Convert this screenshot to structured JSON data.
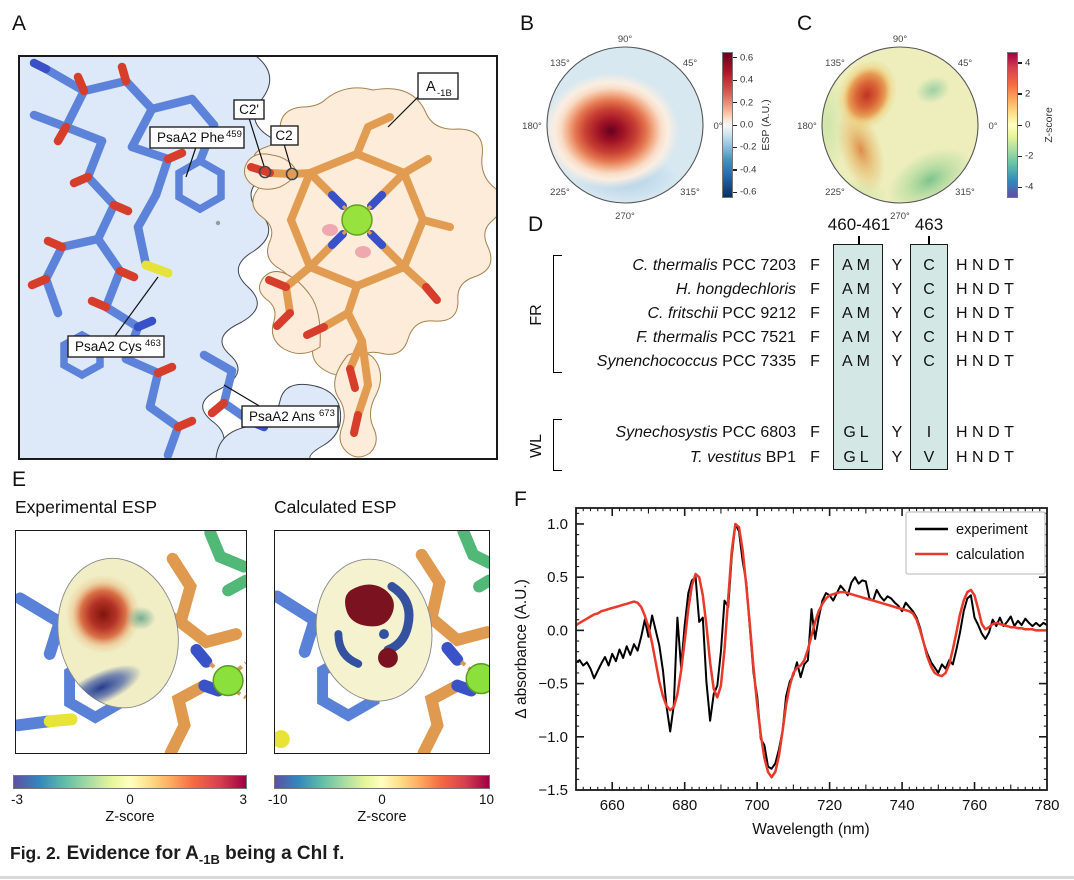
{
  "panelA": {
    "label": "A",
    "labels": {
      "phe_main": "PsaA2 Phe",
      "phe_sup": "459",
      "cys_main": "PsaA2 Cys",
      "cys_sup": "463",
      "ans_main": "PsaA2 Ans",
      "ans_sup": "673",
      "c2prime": "C2'",
      "c2": "C2",
      "a_main": "A",
      "a_sub": "-1B"
    }
  },
  "panelB": {
    "label": "B",
    "angles": [
      "90°",
      "45°",
      "0°",
      "315°",
      "270°",
      "225°",
      "180°",
      "135°"
    ],
    "colorbar_label": "ESP (A.U.)",
    "colorbar_ticks": [
      "0.6",
      "0.4",
      "0.2",
      "0.0",
      "-0.2",
      "-0.4",
      "-0.6"
    ],
    "colorbar_range": 0.65
  },
  "panelC": {
    "label": "C",
    "angles": [
      "90°",
      "45°",
      "0°",
      "315°",
      "270°",
      "225°",
      "180°",
      "135°"
    ],
    "colorbar_label": "Z-score",
    "colorbar_ticks": [
      "4",
      "2",
      "0",
      "-2",
      "-4"
    ],
    "colorbar_range": 4.7
  },
  "panelD": {
    "label": "D",
    "headers": [
      "460-461",
      "463"
    ],
    "groups": [
      {
        "name": "FR",
        "rows": [
          {
            "species": "C. thermalis",
            "strain": " PCC 7203",
            "c0": "F",
            "c1": "AM",
            "c2": "Y",
            "c3": "C",
            "c4": "HNDT"
          },
          {
            "species": "H. hongdechloris",
            "strain": "",
            "c0": "F",
            "c1": "AM",
            "c2": "Y",
            "c3": "C",
            "c4": "HNDT"
          },
          {
            "species": "C. fritschii",
            "strain": " PCC 9212",
            "c0": "F",
            "c1": "AM",
            "c2": "Y",
            "c3": "C",
            "c4": "HNDT"
          },
          {
            "species": "F. thermalis",
            "strain": " PCC 7521",
            "c0": "F",
            "c1": "AM",
            "c2": "Y",
            "c3": "C",
            "c4": "HNDT"
          },
          {
            "species": "Synenchococcus",
            "strain": " PCC 7335",
            "c0": "F",
            "c1": "AM",
            "c2": "Y",
            "c3": "C",
            "c4": "HNDT"
          }
        ]
      },
      {
        "name": "WL",
        "rows": [
          {
            "species": "Synechosystis",
            "strain": " PCC 6803",
            "c0": "F",
            "c1": "GL",
            "c2": "Y",
            "c3": "I",
            "c4": "HNDT"
          },
          {
            "species": "T. vestitus",
            "strain": " BP1",
            "c0": "F",
            "c1": "GL",
            "c2": "Y",
            "c3": "V",
            "c4": "HNDT"
          }
        ]
      }
    ]
  },
  "panelE": {
    "label": "E",
    "titles": [
      "Experimental ESP",
      "Calculated ESP"
    ],
    "colorbars": [
      {
        "min": "-3",
        "mid": "0",
        "max": "3",
        "label": "Z-score"
      },
      {
        "min": "-10",
        "mid": "0",
        "max": "10",
        "label": "Z-score"
      }
    ]
  },
  "panelF": {
    "label": "F",
    "xlabel": "Wavelength (nm)",
    "ylabel": "Δ absorbance (A.U.)",
    "legend": [
      "experiment",
      "calculation"
    ]
  },
  "caption": {
    "prefix": "Fig. 2.",
    "main": "Evidence for A",
    "sub": "-1B",
    "tail": " being a Chl f."
  },
  "chart_data": {
    "type": "line",
    "title": "",
    "xlabel": "Wavelength (nm)",
    "ylabel": "Δ absorbance (A.U.)",
    "xlim": [
      650,
      780
    ],
    "ylim": [
      -1.5,
      1.15
    ],
    "xticks": [
      660,
      680,
      700,
      720,
      740,
      760,
      780
    ],
    "yticks": [
      1.0,
      0.5,
      0.0,
      -0.5,
      -1.0,
      -1.5
    ],
    "grid": false,
    "legend_position": "upper right",
    "x_start": 650,
    "x_step": 1,
    "series": [
      {
        "name": "experiment",
        "color": "#000000",
        "values": [
          -0.3,
          -0.28,
          -0.33,
          -0.3,
          -0.36,
          -0.45,
          -0.38,
          -0.31,
          -0.25,
          -0.33,
          -0.22,
          -0.29,
          -0.18,
          -0.26,
          -0.15,
          -0.23,
          -0.13,
          -0.19,
          -0.06,
          0.1,
          -0.06,
          0.14,
          0.0,
          -0.14,
          -0.38,
          -0.72,
          -0.95,
          -0.7,
          0.12,
          -0.35,
          0.05,
          0.35,
          0.47,
          0.5,
          0.08,
          0.12,
          -0.48,
          -0.85,
          -0.6,
          -0.52,
          -0.2,
          0.28,
          0.22,
          0.7,
          1.0,
          0.93,
          0.65,
          0.45,
          0.02,
          -0.4,
          -0.62,
          -1.02,
          -1.08,
          -1.28,
          -1.3,
          -1.25,
          -1.12,
          -0.95,
          -0.62,
          -0.48,
          -0.42,
          -0.3,
          -0.44,
          -0.32,
          -0.28,
          0.2,
          -0.08,
          0.12,
          0.28,
          0.35,
          0.33,
          0.28,
          0.35,
          0.42,
          0.38,
          0.33,
          0.45,
          0.5,
          0.44,
          0.47,
          0.46,
          0.3,
          0.28,
          0.38,
          0.32,
          0.28,
          0.32,
          0.3,
          0.26,
          0.23,
          0.18,
          0.26,
          0.22,
          0.18,
          0.12,
          0.02,
          -0.12,
          -0.22,
          -0.3,
          -0.35,
          -0.4,
          -0.32,
          -0.36,
          -0.28,
          -0.32,
          -0.18,
          -0.02,
          0.18,
          0.3,
          0.33,
          0.12,
          0.05,
          -0.03,
          -0.08,
          -0.02,
          0.1,
          0.04,
          0.12,
          0.04,
          0.08,
          0.13,
          0.04,
          0.09,
          0.05,
          0.11,
          0.07,
          0.04,
          0.07,
          0.04,
          0.07,
          0.05
        ]
      },
      {
        "name": "calculation",
        "color": "#e8392a",
        "values": [
          0.05,
          0.07,
          0.09,
          0.11,
          0.13,
          0.15,
          0.16,
          0.18,
          0.19,
          0.2,
          0.21,
          0.22,
          0.23,
          0.24,
          0.25,
          0.26,
          0.27,
          0.26,
          0.22,
          0.14,
          0.03,
          -0.12,
          -0.3,
          -0.48,
          -0.62,
          -0.71,
          -0.75,
          -0.72,
          -0.6,
          -0.38,
          -0.1,
          0.2,
          0.42,
          0.53,
          0.5,
          0.33,
          0.05,
          -0.3,
          -0.55,
          -0.63,
          -0.52,
          -0.18,
          0.3,
          0.75,
          1.0,
          0.97,
          0.75,
          0.42,
          0.05,
          -0.35,
          -0.7,
          -0.98,
          -1.2,
          -1.33,
          -1.38,
          -1.33,
          -1.18,
          -0.95,
          -0.7,
          -0.52,
          -0.4,
          -0.35,
          -0.33,
          -0.28,
          -0.18,
          -0.05,
          0.08,
          0.18,
          0.25,
          0.3,
          0.33,
          0.34,
          0.35,
          0.36,
          0.36,
          0.35,
          0.34,
          0.33,
          0.32,
          0.31,
          0.3,
          0.29,
          0.28,
          0.27,
          0.26,
          0.25,
          0.24,
          0.23,
          0.22,
          0.21,
          0.2,
          0.19,
          0.18,
          0.16,
          0.1,
          0.0,
          -0.12,
          -0.25,
          -0.34,
          -0.4,
          -0.42,
          -0.43,
          -0.4,
          -0.32,
          -0.18,
          -0.02,
          0.15,
          0.28,
          0.36,
          0.38,
          0.33,
          0.2,
          0.06,
          0.01,
          0.03,
          0.06,
          0.07,
          0.06,
          0.05,
          0.04,
          0.03,
          0.03,
          0.02,
          0.02,
          0.01,
          0.01,
          0.01,
          0.0,
          0.0,
          0.0,
          0.0
        ]
      }
    ]
  }
}
